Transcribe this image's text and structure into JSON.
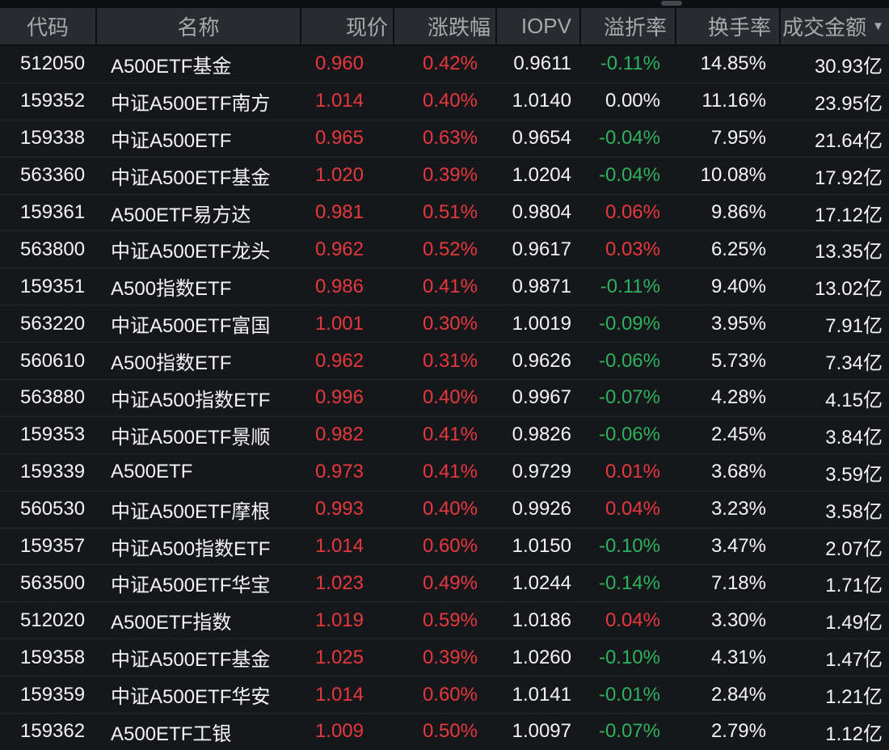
{
  "colors": {
    "up": "#e5393e",
    "down": "#2cb25e",
    "flat": "#f4f4f6",
    "text": "#f4f4f6",
    "header_text": "#a8a9ab",
    "header_bg": "#2a2b31",
    "row_bg": "#16171b",
    "page_bg": "#0d0e11"
  },
  "icons": {
    "sort_desc": "▼"
  },
  "table": {
    "columns": [
      {
        "key": "code",
        "label": "代码"
      },
      {
        "key": "name",
        "label": "名称"
      },
      {
        "key": "price",
        "label": "现价"
      },
      {
        "key": "change_pct",
        "label": "涨跌幅"
      },
      {
        "key": "iopv",
        "label": "IOPV"
      },
      {
        "key": "premium_discount",
        "label": "溢折率"
      },
      {
        "key": "turnover_rate",
        "label": "换手率"
      },
      {
        "key": "turnover_amount",
        "label": "成交金额"
      }
    ],
    "sort": {
      "column": "turnover_amount",
      "direction": "desc"
    },
    "rows": [
      {
        "code": "512050",
        "name": "A500ETF基金",
        "price": "0.960",
        "change_pct": "0.42%",
        "iopv": "0.9611",
        "premium_discount": "-0.11%",
        "turnover_rate": "14.85%",
        "turnover_amount": "30.93亿"
      },
      {
        "code": "159352",
        "name": "中证A500ETF南方",
        "price": "1.014",
        "change_pct": "0.40%",
        "iopv": "1.0140",
        "premium_discount": "0.00%",
        "turnover_rate": "11.16%",
        "turnover_amount": "23.95亿"
      },
      {
        "code": "159338",
        "name": "中证A500ETF",
        "price": "0.965",
        "change_pct": "0.63%",
        "iopv": "0.9654",
        "premium_discount": "-0.04%",
        "turnover_rate": "7.95%",
        "turnover_amount": "21.64亿"
      },
      {
        "code": "563360",
        "name": "中证A500ETF基金",
        "price": "1.020",
        "change_pct": "0.39%",
        "iopv": "1.0204",
        "premium_discount": "-0.04%",
        "turnover_rate": "10.08%",
        "turnover_amount": "17.92亿"
      },
      {
        "code": "159361",
        "name": "A500ETF易方达",
        "price": "0.981",
        "change_pct": "0.51%",
        "iopv": "0.9804",
        "premium_discount": "0.06%",
        "turnover_rate": "9.86%",
        "turnover_amount": "17.12亿"
      },
      {
        "code": "563800",
        "name": "中证A500ETF龙头",
        "price": "0.962",
        "change_pct": "0.52%",
        "iopv": "0.9617",
        "premium_discount": "0.03%",
        "turnover_rate": "6.25%",
        "turnover_amount": "13.35亿"
      },
      {
        "code": "159351",
        "name": "A500指数ETF",
        "price": "0.986",
        "change_pct": "0.41%",
        "iopv": "0.9871",
        "premium_discount": "-0.11%",
        "turnover_rate": "9.40%",
        "turnover_amount": "13.02亿"
      },
      {
        "code": "563220",
        "name": "中证A500ETF富国",
        "price": "1.001",
        "change_pct": "0.30%",
        "iopv": "1.0019",
        "premium_discount": "-0.09%",
        "turnover_rate": "3.95%",
        "turnover_amount": "7.91亿"
      },
      {
        "code": "560610",
        "name": "A500指数ETF",
        "price": "0.962",
        "change_pct": "0.31%",
        "iopv": "0.9626",
        "premium_discount": "-0.06%",
        "turnover_rate": "5.73%",
        "turnover_amount": "7.34亿"
      },
      {
        "code": "563880",
        "name": "中证A500指数ETF",
        "price": "0.996",
        "change_pct": "0.40%",
        "iopv": "0.9967",
        "premium_discount": "-0.07%",
        "turnover_rate": "4.28%",
        "turnover_amount": "4.15亿"
      },
      {
        "code": "159353",
        "name": "中证A500ETF景顺",
        "price": "0.982",
        "change_pct": "0.41%",
        "iopv": "0.9826",
        "premium_discount": "-0.06%",
        "turnover_rate": "2.45%",
        "turnover_amount": "3.84亿"
      },
      {
        "code": "159339",
        "name": "A500ETF",
        "price": "0.973",
        "change_pct": "0.41%",
        "iopv": "0.9729",
        "premium_discount": "0.01%",
        "turnover_rate": "3.68%",
        "turnover_amount": "3.59亿"
      },
      {
        "code": "560530",
        "name": "中证A500ETF摩根",
        "price": "0.993",
        "change_pct": "0.40%",
        "iopv": "0.9926",
        "premium_discount": "0.04%",
        "turnover_rate": "3.23%",
        "turnover_amount": "3.58亿"
      },
      {
        "code": "159357",
        "name": "中证A500指数ETF",
        "price": "1.014",
        "change_pct": "0.60%",
        "iopv": "1.0150",
        "premium_discount": "-0.10%",
        "turnover_rate": "3.47%",
        "turnover_amount": "2.07亿"
      },
      {
        "code": "563500",
        "name": "中证A500ETF华宝",
        "price": "1.023",
        "change_pct": "0.49%",
        "iopv": "1.0244",
        "premium_discount": "-0.14%",
        "turnover_rate": "7.18%",
        "turnover_amount": "1.71亿"
      },
      {
        "code": "512020",
        "name": "A500ETF指数",
        "price": "1.019",
        "change_pct": "0.59%",
        "iopv": "1.0186",
        "premium_discount": "0.04%",
        "turnover_rate": "3.30%",
        "turnover_amount": "1.49亿"
      },
      {
        "code": "159358",
        "name": "中证A500ETF基金",
        "price": "1.025",
        "change_pct": "0.39%",
        "iopv": "1.0260",
        "premium_discount": "-0.10%",
        "turnover_rate": "4.31%",
        "turnover_amount": "1.47亿"
      },
      {
        "code": "159359",
        "name": "中证A500ETF华安",
        "price": "1.014",
        "change_pct": "0.60%",
        "iopv": "1.0141",
        "premium_discount": "-0.01%",
        "turnover_rate": "2.84%",
        "turnover_amount": "1.21亿"
      },
      {
        "code": "159362",
        "name": "A500ETF工银",
        "price": "1.009",
        "change_pct": "0.50%",
        "iopv": "1.0097",
        "premium_discount": "-0.07%",
        "turnover_rate": "2.79%",
        "turnover_amount": "1.12亿"
      }
    ]
  }
}
